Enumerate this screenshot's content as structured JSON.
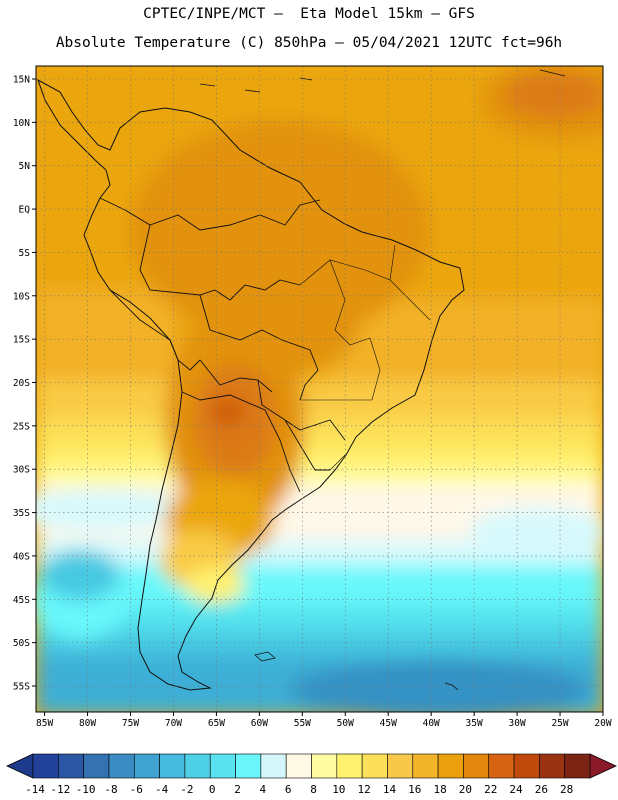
{
  "header": {
    "line1": "CPTEC/INPE/MCT –  Eta Model 15km – GFS",
    "line2": "Absolute Temperature (C) 850hPa – 05/04/2021 12UTC fct=96h"
  },
  "map": {
    "lat_labels": [
      "15N",
      "10N",
      "5N",
      "EQ",
      "5S",
      "10S",
      "15S",
      "20S",
      "25S",
      "30S",
      "35S",
      "40S",
      "45S",
      "50S",
      "55S"
    ],
    "lon_labels": [
      "85W",
      "80W",
      "75W",
      "70W",
      "65W",
      "60W",
      "55W",
      "50W",
      "45W",
      "40W",
      "35W",
      "30W",
      "25W",
      "20W"
    ],
    "lat_values": [
      15,
      10,
      5,
      0,
      -5,
      -10,
      -15,
      -20,
      -25,
      -30,
      -35,
      -40,
      -45,
      -50,
      -55
    ],
    "lon_values": [
      -85,
      -80,
      -75,
      -70,
      -65,
      -60,
      -55,
      -50,
      -45,
      -40,
      -35,
      -30,
      -25,
      -20
    ],
    "extent": {
      "lon_min": -86,
      "lon min note": "",
      "lon_max": -20,
      "lat_min": -58,
      "lat_max": 16.5
    },
    "colors": {
      "c4": "#d7f9fd",
      "c6": "#fff8e8",
      "c8": "#fffca0",
      "c10": "#fff270",
      "c12": "#fde158",
      "c14": "#f9cb44",
      "c16": "#f2b126",
      "c18": "#eba60e",
      "c20": "#e2920c",
      "c22": "#dc7a16",
      "c24": "#cf5a0c",
      "c26": "#9e3a10",
      "c2": "#67f8fb",
      "c0": "#55e4ee",
      "cm2": "#47c9e2",
      "cm4": "#3dafd6",
      "cm6": "#3692c4",
      "cm8": "#2f7ab6",
      "land_line": "#111111"
    }
  },
  "colorbar": {
    "labels": [
      "-14",
      "-12",
      "-10",
      "-8",
      "-6",
      "-4",
      "-2",
      "0",
      "2",
      "4",
      "6",
      "8",
      "10",
      "12",
      "14",
      "16",
      "18",
      "20",
      "22",
      "24",
      "26",
      "28"
    ],
    "colors": [
      "#21419a",
      "#2b57a5",
      "#3472b2",
      "#3a8cc2",
      "#40a3d1",
      "#47badf",
      "#4ed0e7",
      "#5ae2f0",
      "#6af6fb",
      "#d3f7fb",
      "#fff9e6",
      "#fffca2",
      "#fff26f",
      "#fde05a",
      "#f8c84a",
      "#f2b42a",
      "#eba10d",
      "#e2860d",
      "#d76414",
      "#c04a0c",
      "#9a3312",
      "#7b2413"
    ],
    "end_low": "#1e3a8a",
    "end_high": "#8a1a2a"
  }
}
